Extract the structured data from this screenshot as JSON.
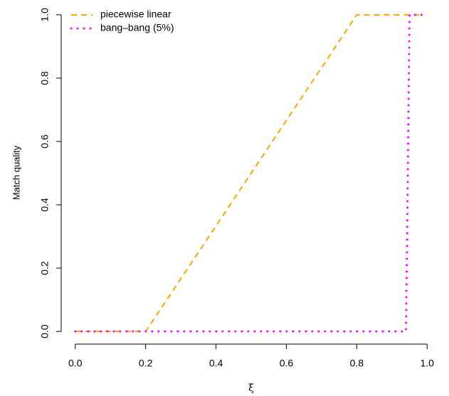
{
  "chart_data": {
    "type": "line",
    "xlabel": "ξ",
    "ylabel": "Match quality",
    "series": [
      {
        "name": "piecewise linear",
        "color": "#FFA500",
        "style": "dashed",
        "x": [
          0,
          0.2,
          0.8,
          0.99
        ],
        "values": [
          0,
          0,
          1,
          1
        ]
      },
      {
        "name": "bang–bang (5%)",
        "color": "#FF00FF",
        "style": "dotted",
        "x": [
          0,
          0.94,
          0.95,
          0.99
        ],
        "values": [
          0,
          0,
          1,
          1
        ]
      }
    ],
    "xlim": [
      -0.04,
      1.04
    ],
    "ylim": [
      -0.04,
      1.04
    ],
    "xticks": [
      {
        "value": 0,
        "label": "0.0"
      },
      {
        "value": 0.2,
        "label": "0.2"
      },
      {
        "value": 0.4,
        "label": "0.4"
      },
      {
        "value": 0.6,
        "label": "0.6"
      },
      {
        "value": 0.8,
        "label": "0.8"
      },
      {
        "value": 1,
        "label": "1.0"
      }
    ],
    "yticks": [
      {
        "value": 0,
        "label": "0.0"
      },
      {
        "value": 0.2,
        "label": "0.2"
      },
      {
        "value": 0.4,
        "label": "0.4"
      },
      {
        "value": 0.6,
        "label": "0.6"
      },
      {
        "value": 0.8,
        "label": "0.8"
      },
      {
        "value": 1,
        "label": "1.0"
      }
    ],
    "legend": "top-left"
  }
}
